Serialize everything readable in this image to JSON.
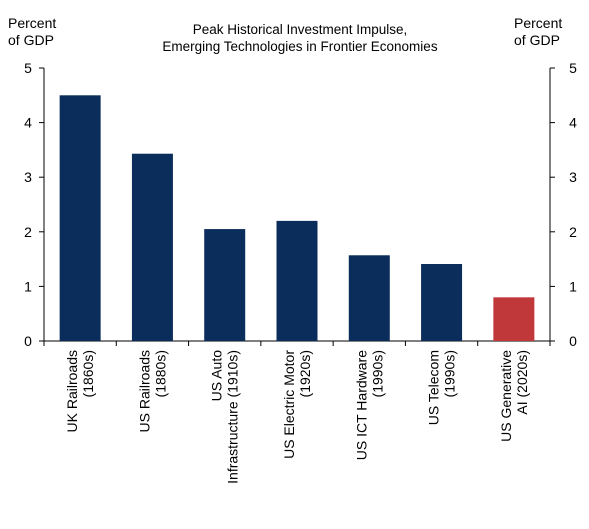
{
  "chart_data": {
    "type": "bar",
    "title_lines": [
      "Peak Historical Investment Impulse,",
      "Emerging Technologies in Frontier Economies"
    ],
    "ylabel_left_lines": [
      "Percent",
      "of GDP"
    ],
    "ylabel_right_lines": [
      "Percent",
      "of GDP"
    ],
    "ylim": [
      0,
      5
    ],
    "yticks": [
      "0",
      "1",
      "2",
      "3",
      "4",
      "5"
    ],
    "categories": [
      [
        "UK Railroads",
        "(1860s)"
      ],
      [
        "US Railroads",
        "(1880s)"
      ],
      [
        "US Auto",
        "Infrastructure (1910s)"
      ],
      [
        "US Electric Motor",
        "(1920s)"
      ],
      [
        "US ICT Hardware",
        "(1990s)"
      ],
      [
        "US Telecom",
        "(1990s)"
      ],
      [
        "US Generative",
        "AI (2020s)"
      ]
    ],
    "values": [
      4.5,
      3.43,
      2.05,
      2.2,
      1.57,
      1.41,
      0.8
    ],
    "colors": [
      "#0b2d5b",
      "#0b2d5b",
      "#0b2d5b",
      "#0b2d5b",
      "#0b2d5b",
      "#0b2d5b",
      "#c0383a"
    ],
    "grid": false,
    "legend": "none"
  }
}
